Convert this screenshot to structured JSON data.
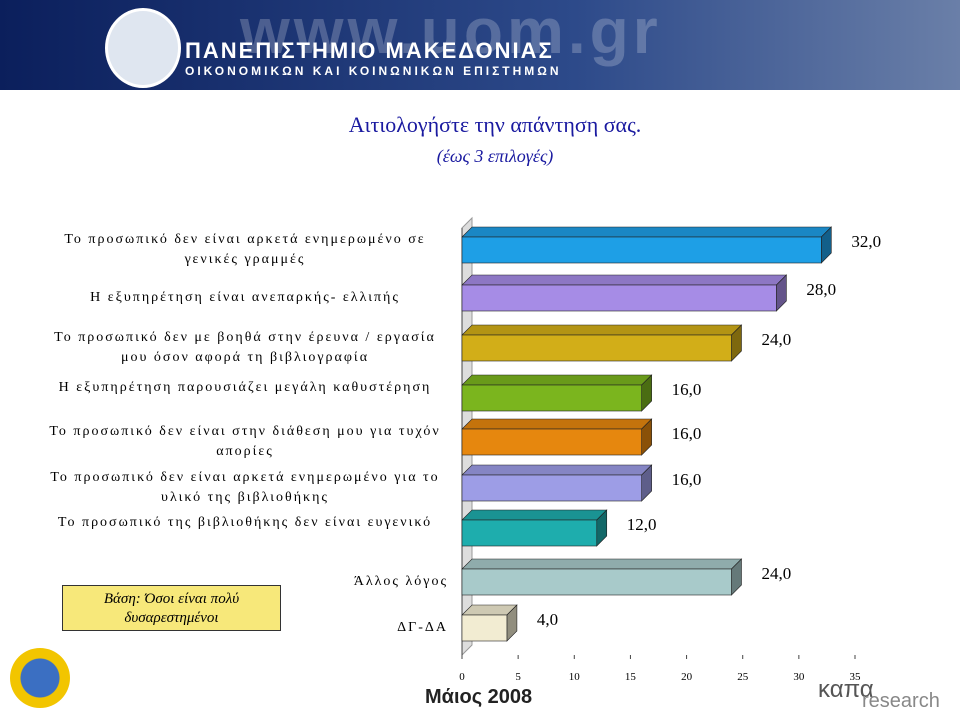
{
  "header": {
    "url": "www.uom.gr",
    "university": "ΠΑΝΕΠΙΣΤΗΜΙΟ ΜΑΚΕΔΟΝΙΑΣ",
    "faculty": "ΟΙΚΟΝΟΜΙΚΩΝ ΚΑΙ ΚΟΙΝΩΝΙΚΩΝ ΕΠΙΣΤΗΜΩΝ"
  },
  "chart_data": {
    "type": "bar3d-horizontal",
    "title": "Αιτιολογήστε την απάντηση σας.",
    "subtitle": "(έως 3 επιλογές)",
    "categories": [
      "Το προσωπικό δεν είναι αρκετά ενημερωμένο σε γενικές γραμμές",
      "Η εξυπηρέτηση είναι ανεπαρκής- ελλιπής",
      "Το προσωπικό δεν με βοηθά στην έρευνα / εργασία μου όσον αφορά τη βιβλιογραφία",
      "Η εξυπηρέτηση παρουσιάζει μεγάλη καθυστέρηση",
      "Το προσωπικό δεν είναι στην διάθεση μου για τυχόν απορίες",
      "Το προσωπικό δεν είναι αρκετά ενημερωμένο για το υλικό της βιβλιοθήκης",
      "Το προσωπικό της βιβλιοθήκης δεν είναι ευγενικό",
      "Άλλος λόγος",
      "ΔΓ-ΔΑ"
    ],
    "values": [
      32,
      28,
      24,
      16,
      16,
      16,
      12,
      24,
      4
    ],
    "value_labels": [
      "32,0",
      "28,0",
      "24,0",
      "16,0",
      "16,0",
      "16,0",
      "12,0",
      "24,0",
      "4,0"
    ],
    "colors": [
      "#1e9fe6",
      "#a68ce6",
      "#d2ae18",
      "#7bb51e",
      "#e6870e",
      "#9d9de6",
      "#1eadad",
      "#a8caca",
      "#f2ecd2"
    ],
    "xlim": [
      0,
      35
    ],
    "xticks": [
      0,
      5,
      10,
      15,
      20,
      25,
      30,
      35
    ],
    "note": "Βάση: Όσοι είναι πολύ δυσαρεστημένοι"
  },
  "footer": {
    "date": "Μάιος 2008",
    "logo_top": "καπα",
    "logo_bottom": "research"
  }
}
